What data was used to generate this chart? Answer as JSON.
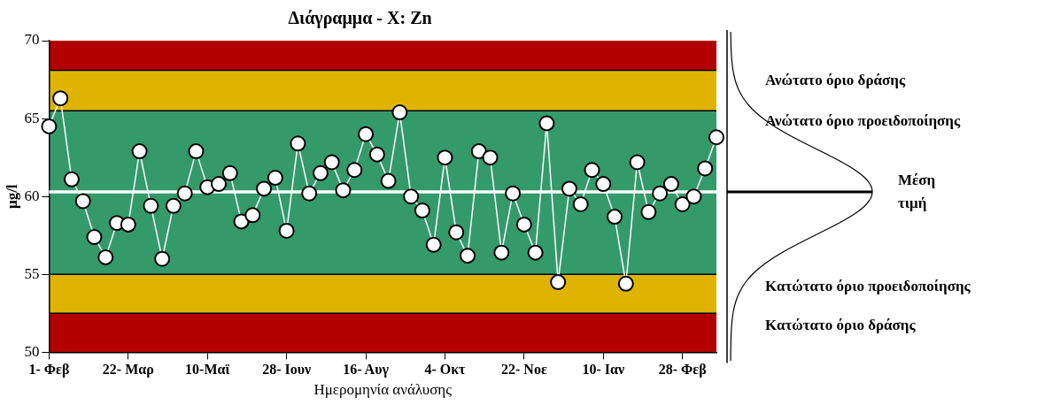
{
  "chart_data": {
    "type": "line",
    "title": "Διάγραμμα - X: Zn",
    "xlabel": "Ημερομηνία ανάλυσης",
    "ylabel": "μg/l",
    "categories": [
      "1- Φεβ",
      null,
      null,
      null,
      null,
      null,
      null,
      "22- Μαρ",
      null,
      null,
      null,
      null,
      null,
      null,
      "10-Μαϊ",
      null,
      null,
      null,
      null,
      null,
      null,
      "28- Ιουν",
      null,
      null,
      null,
      null,
      null,
      null,
      "16- Αυγ",
      null,
      null,
      null,
      null,
      null,
      null,
      "4- Οκτ",
      null,
      null,
      null,
      null,
      null,
      null,
      "22- Νοε",
      null,
      null,
      null,
      null,
      null,
      null,
      "10- Ιαν",
      null,
      null,
      null,
      null,
      null,
      null,
      "28- Φεβ",
      null,
      null,
      null
    ],
    "series": [
      {
        "color": "#ffffff",
        "values": [
          64.5,
          66.3,
          61.1,
          59.7,
          57.4,
          56.1,
          58.3,
          58.2,
          62.9,
          59.4,
          56.0,
          59.4,
          60.2,
          62.9,
          60.6,
          60.8,
          61.5,
          58.4,
          58.8,
          60.5,
          61.2,
          57.8,
          63.4,
          60.2,
          61.5,
          62.2,
          60.4,
          61.7,
          64.0,
          62.7,
          61.0,
          65.4,
          60.0,
          59.1,
          56.9,
          62.5,
          57.7,
          56.2,
          62.9,
          62.5,
          56.4,
          60.2,
          58.2,
          56.4,
          64.7,
          54.5,
          60.5,
          59.5,
          61.7,
          60.8,
          58.7,
          54.4,
          62.2,
          59.0,
          60.2,
          60.8,
          59.5,
          60.0,
          61.8,
          63.8
        ]
      }
    ],
    "marker": "circle",
    "line_style": "solid",
    "grid": false,
    "legend": false,
    "ylim": [
      50,
      70
    ],
    "yticks": [
      50,
      55,
      60,
      65,
      70
    ],
    "bands": [
      {
        "axis": "y",
        "from": 68.1,
        "to": 70,
        "color": "#b30000"
      },
      {
        "axis": "y",
        "from": 65.5,
        "to": 68.1,
        "color": "#dfb400"
      },
      {
        "axis": "y",
        "from": 55,
        "to": 65.5,
        "color": "#359a6a"
      },
      {
        "axis": "y",
        "from": 52.5,
        "to": 55,
        "color": "#dfb400"
      },
      {
        "axis": "y",
        "from": 50,
        "to": 52.5,
        "color": "#b30000"
      }
    ],
    "ref_lines": [
      {
        "axis": "y",
        "value": 68.1,
        "color": "#000000"
      },
      {
        "axis": "y",
        "value": 65.5,
        "color": "#000000"
      },
      {
        "axis": "y",
        "value": 60.3,
        "color": "#ffffff"
      },
      {
        "axis": "y",
        "value": 55,
        "color": "#000000"
      },
      {
        "axis": "y",
        "value": 52.5,
        "color": "#000000"
      }
    ],
    "annotations": [
      "Ανώτατο όριο δράσης",
      "Ανώτατο όριο προειδοποίησης",
      "Μέση τιμή",
      "Κατώτατο όριο προειδοποίησης",
      "Κατώτατο όριο δράσης"
    ]
  }
}
